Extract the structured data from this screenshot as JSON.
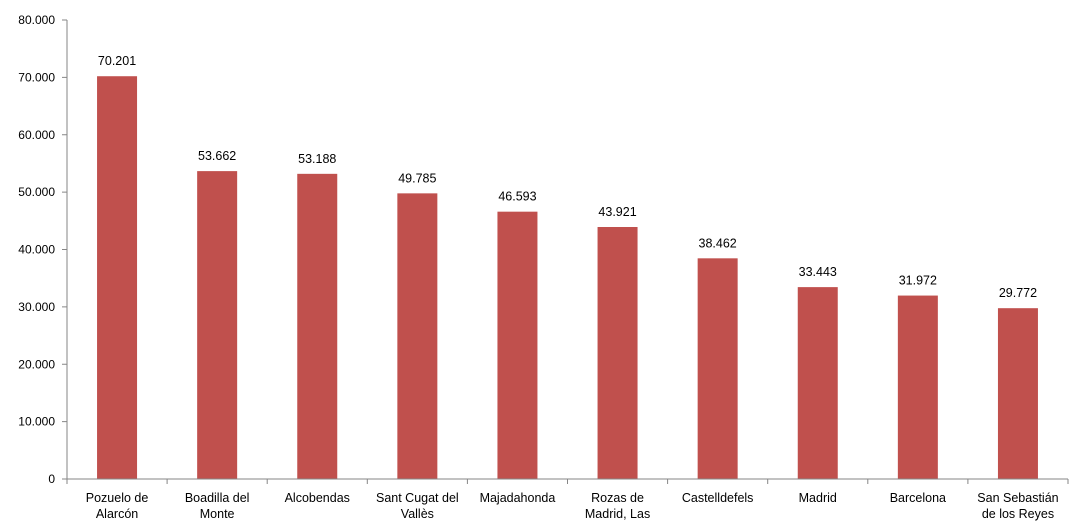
{
  "chart_data": {
    "type": "bar",
    "categories": [
      [
        "Pozuelo de",
        "Alarcón"
      ],
      [
        "Boadilla del",
        "Monte"
      ],
      [
        "Alcobendas"
      ],
      [
        "Sant Cugat del",
        "Vallès"
      ],
      [
        "Majadahonda"
      ],
      [
        "Rozas de",
        "Madrid, Las"
      ],
      [
        "Castelldefels"
      ],
      [
        "Madrid"
      ],
      [
        "Barcelona"
      ],
      [
        "San Sebastián",
        "de los Reyes"
      ]
    ],
    "values": [
      70201,
      53662,
      53188,
      49785,
      46593,
      43921,
      38462,
      33443,
      31972,
      29772
    ],
    "value_labels": [
      "70.201",
      "53.662",
      "53.188",
      "49.785",
      "46.593",
      "43.921",
      "38.462",
      "33.443",
      "31.972",
      "29.772"
    ],
    "y_ticks": [
      0,
      10000,
      20000,
      30000,
      40000,
      50000,
      60000,
      70000,
      80000
    ],
    "y_tick_labels": [
      "0",
      "10.000",
      "20.000",
      "30.000",
      "40.000",
      "50.000",
      "60.000",
      "70.000",
      "80.000"
    ],
    "ylim": [
      0,
      80000
    ],
    "bar_color": "#C0504D",
    "grid": false,
    "legend": "none"
  }
}
